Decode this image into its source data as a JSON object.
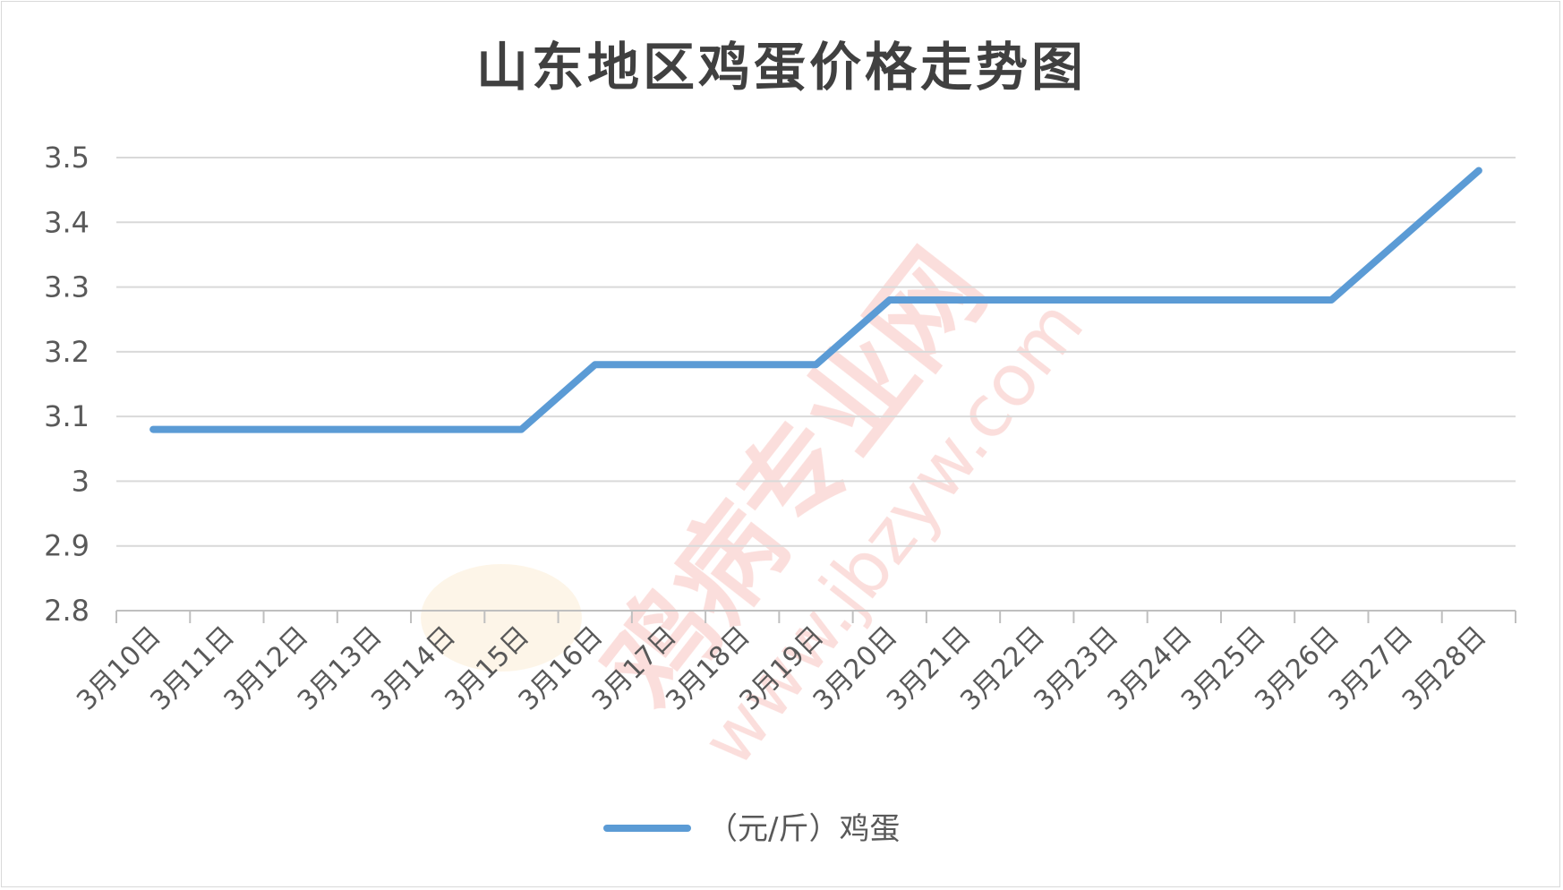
{
  "chart_data": {
    "type": "line",
    "title": "山东地区鸡蛋价格走势图",
    "xlabel": "",
    "ylabel": "",
    "categories": [
      "3月10日",
      "3月11日",
      "3月12日",
      "3月13日",
      "3月14日",
      "3月15日",
      "3月16日",
      "3月17日",
      "3月18日",
      "3月19日",
      "3月20日",
      "3月21日",
      "3月22日",
      "3月23日",
      "3月24日",
      "3月25日",
      "3月26日",
      "3月27日",
      "3月28日"
    ],
    "series": [
      {
        "name": "（元/斤）鸡蛋",
        "color": "#5b9bd5",
        "values": [
          3.08,
          3.08,
          3.08,
          3.08,
          3.08,
          3.08,
          3.18,
          3.18,
          3.18,
          3.18,
          3.28,
          3.28,
          3.28,
          3.28,
          3.28,
          3.28,
          3.28,
          3.38,
          3.48
        ]
      }
    ],
    "ylim": [
      2.8,
      3.5
    ],
    "yticks": [
      2.8,
      2.9,
      3,
      3.1,
      3.2,
      3.3,
      3.4,
      3.5
    ],
    "ytick_labels": [
      "2.8",
      "2.9",
      "3",
      "3.1",
      "3.2",
      "3.3",
      "3.4",
      "3.5"
    ],
    "grid": true,
    "legend": "bottom"
  },
  "watermark": {
    "text": "鸡病专业网 www.jbzyw.com",
    "color": "#f4b6b0"
  }
}
